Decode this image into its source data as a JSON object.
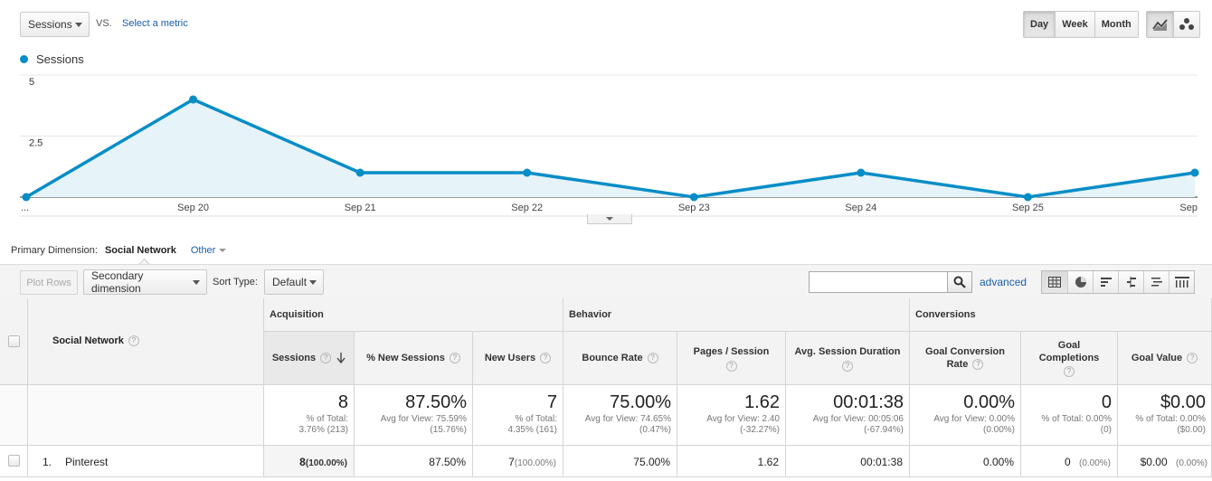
{
  "metric_selector": {
    "value": "Sessions",
    "vs_label": "VS.",
    "select_metric_label": "Select a metric"
  },
  "period_buttons": [
    "Day",
    "Week",
    "Month"
  ],
  "active_period": "Day",
  "chart_type_buttons": [
    "line-chart-icon",
    "motion-chart-icon"
  ],
  "legend": {
    "series_name": "Sessions",
    "color": "#058dc7"
  },
  "chart_data": {
    "type": "line",
    "x": [
      "...",
      "Sep 20",
      "Sep 21",
      "Sep 22",
      "Sep 23",
      "Sep 24",
      "Sep 25",
      "Sep"
    ],
    "series": [
      {
        "name": "Sessions",
        "values": [
          0,
          4,
          1,
          1,
          0,
          1,
          0,
          1
        ]
      }
    ],
    "y_ticks": [
      "5",
      "2.5"
    ],
    "ylim": [
      0,
      5
    ],
    "grid": true,
    "color": "#058dc7",
    "fill": "#e6f3f9"
  },
  "primary_dimension": {
    "label": "Primary Dimension:",
    "current": "Social Network",
    "other": "Other"
  },
  "toolbar": {
    "plot_rows": "Plot Rows",
    "secondary_dimension": "Secondary dimension",
    "sort_type_label": "Sort Type:",
    "sort_type_value": "Default",
    "search_value": "",
    "advanced": "advanced",
    "view_icons": [
      "table-view-icon",
      "pie-view-icon",
      "performance-view-icon",
      "comparison-view-icon",
      "term-cloud-view-icon",
      "pivot-view-icon"
    ]
  },
  "table": {
    "dimension_header": "Social Network",
    "groups": {
      "acquisition": "Acquisition",
      "behavior": "Behavior",
      "conversions": "Conversions"
    },
    "columns": {
      "sessions": "Sessions",
      "new_sessions": "% New Sessions",
      "new_users": "New Users",
      "bounce_rate": "Bounce Rate",
      "pages_session": "Pages / Session",
      "avg_duration": "Avg. Session Duration",
      "goal_conv_rate": "Goal Conversion Rate",
      "goal_completions": "Goal Completions",
      "goal_value": "Goal Value"
    },
    "totals": {
      "sessions": {
        "big": "8",
        "sub1": "% of Total:",
        "sub2": "3.76% (213)"
      },
      "new_sessions": {
        "big": "87.50%",
        "sub1": "Avg for View: 75.59%",
        "sub2": "(15.76%)"
      },
      "new_users": {
        "big": "7",
        "sub1": "% of Total:",
        "sub2": "4.35% (161)"
      },
      "bounce_rate": {
        "big": "75.00%",
        "sub1": "Avg for View: 74.65%",
        "sub2": "(0.47%)"
      },
      "pages_session": {
        "big": "1.62",
        "sub1": "Avg for View: 2.40",
        "sub2": "(-32.27%)"
      },
      "avg_duration": {
        "big": "00:01:38",
        "sub1": "Avg for View: 00:05:06",
        "sub2": "(-67.94%)"
      },
      "goal_conv_rate": {
        "big": "0.00%",
        "sub1": "Avg for View: 0.00%",
        "sub2": "(0.00%)"
      },
      "goal_completions": {
        "big": "0",
        "sub1": "% of Total: 0.00%",
        "sub2": "(0)"
      },
      "goal_value": {
        "big": "$0.00",
        "sub1": "% of Total: 0.00%",
        "sub2": "($0.00)"
      }
    },
    "rows": [
      {
        "index": "1.",
        "name": "Pinterest",
        "sessions": "8",
        "sessions_pct": "(100.00%)",
        "new_sessions": "87.50%",
        "new_users": "7",
        "new_users_pct": "(100.00%)",
        "bounce_rate": "75.00%",
        "pages_session": "1.62",
        "avg_duration": "00:01:38",
        "goal_conv_rate": "0.00%",
        "goal_completions": "0",
        "goal_completions_pct": "(0.00%)",
        "goal_value": "$0.00",
        "goal_value_pct": "(0.00%)"
      }
    ]
  }
}
